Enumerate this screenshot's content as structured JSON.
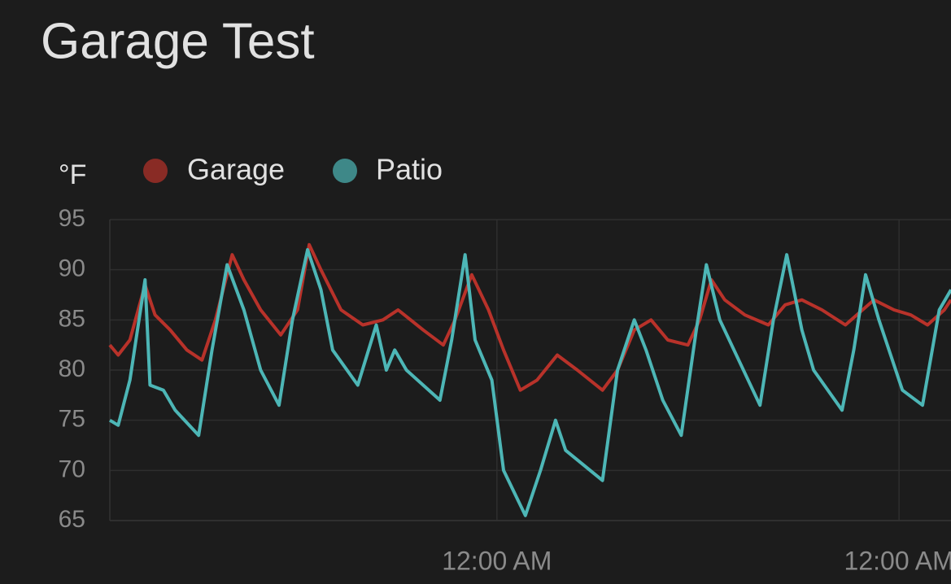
{
  "chart_data": {
    "type": "line",
    "title": "Garage Test",
    "y_label": "°F",
    "xlim": [
      0.9,
      51.1
    ],
    "xticks": [
      {
        "value": 24,
        "label": "12:00 AM"
      },
      {
        "value": 48,
        "label": "12:00 AM"
      }
    ],
    "ylim": [
      65,
      95
    ],
    "yticks": [
      65,
      70,
      75,
      80,
      85,
      90,
      95
    ],
    "grid": true,
    "series": [
      {
        "name": "Garage",
        "color": "#b8322a",
        "x": [
          0.9,
          1.4,
          2.1,
          3.0,
          3.6,
          4.5,
          5.5,
          6.4,
          7.2,
          8.2,
          8.9,
          9.9,
          11.1,
          12.1,
          12.8,
          13.5,
          14.7,
          16.0,
          17.2,
          18.1,
          19.6,
          20.8,
          21.5,
          22.5,
          23.5,
          24.4,
          25.4,
          26.4,
          27.6,
          28.8,
          30.3,
          31.2,
          32.2,
          33.2,
          34.2,
          35.4,
          36.1,
          36.8,
          37.6,
          38.8,
          40.2,
          41.2,
          42.2,
          43.4,
          44.8,
          46.5,
          47.7,
          48.7,
          49.7,
          50.7,
          51.1
        ],
        "values": [
          82.5,
          81.5,
          83,
          88.5,
          85.5,
          84,
          82,
          81,
          85,
          91.5,
          89,
          86,
          83.5,
          86,
          92.5,
          90,
          86,
          84.5,
          85,
          86,
          84,
          82.5,
          85,
          89.5,
          86,
          82,
          78,
          79,
          81.5,
          80,
          78,
          80,
          84,
          85,
          83,
          82.5,
          85,
          89,
          87,
          85.5,
          84.5,
          86.5,
          87,
          86,
          84.5,
          87,
          86,
          85.5,
          84.5,
          86,
          87
        ]
      },
      {
        "name": "Patio",
        "color": "#4db6b6",
        "x": [
          0.9,
          1.4,
          2.1,
          3.0,
          3.3,
          4.1,
          4.8,
          6.2,
          7.0,
          7.9,
          8.9,
          9.9,
          11.0,
          11.8,
          12.7,
          13.5,
          14.2,
          15.7,
          16.8,
          17.4,
          17.9,
          18.6,
          20.6,
          21.3,
          22.1,
          22.7,
          23.7,
          24.4,
          25.7,
          26.6,
          27.5,
          28.1,
          30.3,
          31.2,
          32.2,
          32.9,
          33.9,
          35.0,
          35.9,
          36.5,
          37.3,
          39.7,
          40.5,
          41.3,
          42.2,
          42.9,
          44.6,
          45.3,
          46.0,
          46.8,
          48.2,
          49.4,
          50.4,
          51.1
        ],
        "values": [
          75,
          74.5,
          79,
          89,
          78.5,
          78,
          76,
          73.5,
          82,
          90.5,
          86,
          80,
          76.5,
          85,
          92,
          88,
          82,
          78.5,
          84.5,
          80,
          82,
          80,
          77,
          83,
          91.5,
          83,
          79,
          70,
          65.5,
          70,
          75,
          72,
          69,
          80,
          85,
          82,
          77,
          73.5,
          84,
          90.5,
          85,
          76.5,
          85,
          91.5,
          84,
          80,
          76,
          82,
          89.5,
          85,
          78,
          76.5,
          86,
          88
        ]
      }
    ]
  }
}
